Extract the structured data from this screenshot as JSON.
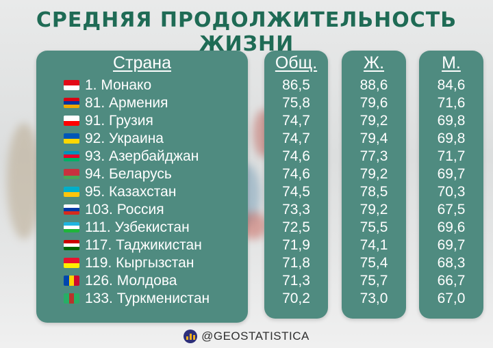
{
  "title": "СРЕДНЯЯ ПРОДОЛЖИТЕЛЬНОСТЬ ЖИЗНИ",
  "headers": {
    "country": "Страна",
    "total": "Общ.",
    "female": "Ж.",
    "male": "М."
  },
  "rows": [
    {
      "rank_country": "1. Монако",
      "total": "86,5",
      "female": "88,6",
      "male": "84,6",
      "flag": [
        "#e30a17",
        "#ffffff"
      ]
    },
    {
      "rank_country": "81. Армения",
      "total": "75,8",
      "female": "79,6",
      "male": "71,6",
      "flag": [
        "#d90012",
        "#0033a0",
        "#f2a800"
      ]
    },
    {
      "rank_country": "91. Грузия",
      "total": "74,7",
      "female": "79,2",
      "male": "69,8",
      "flag": [
        "#ffffff",
        "#ff0000"
      ]
    },
    {
      "rank_country": "92. Украина",
      "total": "74,7",
      "female": "79,4",
      "male": "69,8",
      "flag": [
        "#0057b7",
        "#ffd700"
      ]
    },
    {
      "rank_country": "93. Азербайджан",
      "total": "74,6",
      "female": "77,3",
      "male": "71,7",
      "flag": [
        "#0092bc",
        "#e4002b",
        "#00af66"
      ]
    },
    {
      "rank_country": "94. Беларусь",
      "total": "74,6",
      "female": "79,2",
      "male": "69,7",
      "flag": [
        "#c8313e",
        "#c8313e",
        "#4aa657"
      ]
    },
    {
      "rank_country": "95. Казахстан",
      "total": "74,5",
      "female": "78,5",
      "male": "70,3",
      "flag": [
        "#00afca",
        "#fec50c"
      ]
    },
    {
      "rank_country": "103. Россия",
      "total": "73,3",
      "female": "79,2",
      "male": "67,5",
      "flag": [
        "#ffffff",
        "#0039a6",
        "#d52b1e"
      ]
    },
    {
      "rank_country": "111. Узбекистан",
      "total": "72,5",
      "female": "75,5",
      "male": "69,6",
      "flag": [
        "#1eb5e0",
        "#ffffff",
        "#1eb53a"
      ]
    },
    {
      "rank_country": "117. Таджикистан",
      "total": "71,9",
      "female": "74,1",
      "male": "69,7",
      "flag": [
        "#cc0000",
        "#ffffff",
        "#006600"
      ]
    },
    {
      "rank_country": "119. Кыргызстан",
      "total": "71,8",
      "female": "75,4",
      "male": "68,3",
      "flag": [
        "#e8112d",
        "#ffef00"
      ]
    },
    {
      "rank_country": "126. Молдова",
      "total": "71,3",
      "female": "75,7",
      "male": "66,7",
      "flag": [
        "#0046ae",
        "#ffd200",
        "#cc092f"
      ],
      "vertical": true
    },
    {
      "rank_country": "133. Туркменистан",
      "total": "70,2",
      "female": "73,0",
      "male": "67,0",
      "flag": [
        "#28ae66",
        "#b8332c",
        "#28ae66"
      ],
      "vertical": true
    }
  ],
  "footer": {
    "handle": "@GEOSTATISTICA"
  },
  "colors": {
    "panel": "#4f8b80",
    "title": "#1f6b55",
    "text": "#ffffff"
  }
}
